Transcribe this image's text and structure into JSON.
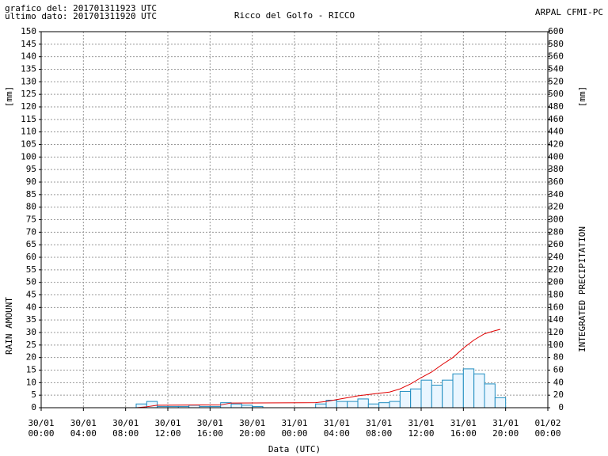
{
  "header": {
    "generated": "grafico del: 201701311923 UTC",
    "last_data": "ultimo dato: 201701311920 UTC",
    "source": "ARPAL CFMI-PC"
  },
  "chart_data": {
    "type": "bar",
    "title": "Ricco del Golfo - RICCO",
    "xlabel": "Data (UTC)",
    "ylabel": "RAIN AMOUNT",
    "y2label": "INTEGRATED PRECIPITATION",
    "yunit": "[mm]",
    "y2unit": "[mm]",
    "xlim": [
      "30/01 00:00",
      "01/02 00:00"
    ],
    "xticks": [
      "30/01 00:00",
      "30/01 04:00",
      "30/01 08:00",
      "30/01 12:00",
      "30/01 16:00",
      "30/01 20:00",
      "31/01 00:00",
      "31/01 04:00",
      "31/01 08:00",
      "31/01 12:00",
      "31/01 16:00",
      "31/01 20:00",
      "01/02 00:00"
    ],
    "ylim": [
      0,
      150
    ],
    "yticks": [
      0,
      5,
      10,
      15,
      20,
      25,
      30,
      35,
      40,
      45,
      50,
      55,
      60,
      65,
      70,
      75,
      80,
      85,
      90,
      95,
      100,
      105,
      110,
      115,
      120,
      125,
      130,
      135,
      140,
      145,
      150
    ],
    "y2lim": [
      0,
      600
    ],
    "y2ticks": [
      0,
      20,
      40,
      60,
      80,
      100,
      120,
      140,
      160,
      180,
      200,
      220,
      240,
      260,
      280,
      300,
      320,
      340,
      360,
      380,
      400,
      420,
      440,
      460,
      480,
      500,
      520,
      540,
      560,
      580,
      600
    ],
    "grid": true,
    "series": [
      {
        "name": "RAIN AMOUNT",
        "type": "bar",
        "color": "#1e8cc0",
        "x": [
          "30/01 09:00",
          "30/01 10:00",
          "30/01 11:00",
          "30/01 12:00",
          "30/01 13:00",
          "30/01 14:00",
          "30/01 15:00",
          "30/01 16:00",
          "30/01 17:00",
          "30/01 18:00",
          "30/01 19:00",
          "30/01 20:00",
          "31/01 02:00",
          "31/01 03:00",
          "31/01 04:00",
          "31/01 05:00",
          "31/01 06:00",
          "31/01 07:00",
          "31/01 08:00",
          "31/01 09:00",
          "31/01 10:00",
          "31/01 11:00",
          "31/01 12:00",
          "31/01 13:00",
          "31/01 14:00",
          "31/01 15:00",
          "31/01 16:00",
          "31/01 17:00",
          "31/01 18:00",
          "31/01 19:00"
        ],
        "values": [
          1.5,
          2.5,
          0.5,
          0.5,
          0.5,
          1,
          0.5,
          0.5,
          2,
          1.5,
          1,
          0.5,
          1.5,
          3,
          2.5,
          2.5,
          3.5,
          1.5,
          2,
          2.5,
          6.5,
          7.5,
          11,
          9,
          11,
          13.5,
          15.5,
          13.5,
          9.5,
          4
        ]
      },
      {
        "name": "INTEGRATED PRECIPITATION",
        "type": "line",
        "axis": "y2",
        "color": "#e00000",
        "x": [
          "30/01 00:00",
          "30/01 09:00",
          "30/01 10:00",
          "30/01 11:00",
          "30/01 17:00",
          "30/01 18:00",
          "31/01 02:00",
          "31/01 03:00",
          "31/01 04:00",
          "31/01 05:00",
          "31/01 06:00",
          "31/01 07:00",
          "31/01 08:00",
          "31/01 09:00",
          "31/01 10:00",
          "31/01 11:00",
          "31/01 12:00",
          "31/01 13:00",
          "31/01 14:00",
          "31/01 15:00",
          "31/01 16:00",
          "31/01 17:00",
          "31/01 18:00",
          "31/01 19:00",
          "31/01 19:30"
        ],
        "values": [
          0,
          0,
          1.5,
          4,
          4.5,
          7.5,
          8,
          10,
          13,
          16,
          19,
          21,
          23,
          25,
          30,
          38,
          48,
          57,
          69,
          80,
          95,
          108,
          118,
          123,
          125
        ]
      }
    ]
  }
}
